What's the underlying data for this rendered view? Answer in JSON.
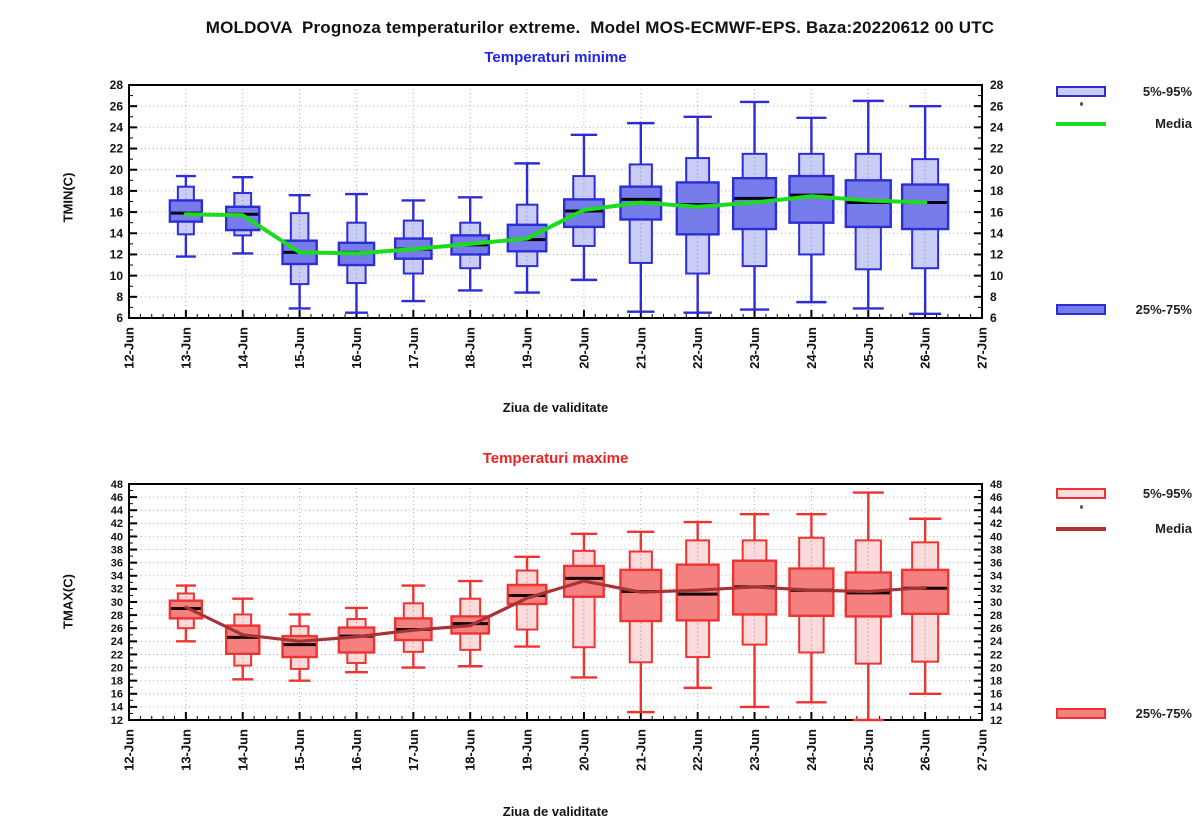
{
  "page": {
    "title": "MOLDOVA  Prognoza temperaturilor extreme.  Model MOS-ECMWF-EPS. Baza:20220612 00 UTC",
    "background": "#ffffff"
  },
  "chart_data": [
    {
      "type": "boxplot",
      "title": "Temperaturi minime",
      "title_color": "#2222ee",
      "ylabel": "TMIN(C)",
      "xlabel": "Ziua de validitate",
      "ylim": [
        6,
        28
      ],
      "ytick_step": 2,
      "grid": true,
      "legend_position": "right-outside",
      "legend": {
        "p5_95": "5%-95%",
        "media": "Media",
        "p25_75": "25%-75%"
      },
      "colors": {
        "border": "#2d2dd6",
        "box_dark": "#767ce9",
        "box_light": "#c9ccf5",
        "media_line": "#1ddb1d",
        "median": "#050514",
        "grid": "#b0b0b0"
      },
      "categories": [
        "12-Jun",
        "13-Jun",
        "14-Jun",
        "15-Jun",
        "16-Jun",
        "17-Jun",
        "18-Jun",
        "19-Jun",
        "20-Jun",
        "21-Jun",
        "22-Jun",
        "23-Jun",
        "24-Jun",
        "25-Jun",
        "26-Jun",
        "27-Jun"
      ],
      "boxes": [
        {
          "date": "13-Jun",
          "whisker_low": 11.8,
          "p5": 13.9,
          "p25": 15.1,
          "median": 15.9,
          "p75": 17.1,
          "p95": 18.4,
          "whisker_high": 19.4,
          "media": 15.8
        },
        {
          "date": "14-Jun",
          "whisker_low": 12.1,
          "p5": 13.8,
          "p25": 14.3,
          "median": 15.8,
          "p75": 16.5,
          "p95": 17.8,
          "whisker_high": 19.3,
          "media": 15.7
        },
        {
          "date": "15-Jun",
          "whisker_low": 6.9,
          "p5": 9.2,
          "p25": 11.1,
          "median": 12.2,
          "p75": 13.3,
          "p95": 15.9,
          "whisker_high": 17.6,
          "media": 12.2
        },
        {
          "date": "16-Jun",
          "whisker_low": 6.5,
          "p5": 9.3,
          "p25": 11.0,
          "median": 12.2,
          "p75": 13.1,
          "p95": 15.0,
          "whisker_high": 17.7,
          "media": 12.1
        },
        {
          "date": "17-Jun",
          "whisker_low": 7.6,
          "p5": 10.2,
          "p25": 11.6,
          "median": 12.5,
          "p75": 13.5,
          "p95": 15.2,
          "whisker_high": 17.1,
          "media": 12.5
        },
        {
          "date": "18-Jun",
          "whisker_low": 8.6,
          "p5": 10.7,
          "p25": 12.0,
          "median": 12.9,
          "p75": 13.8,
          "p95": 15.0,
          "whisker_high": 17.4,
          "media": 13.0
        },
        {
          "date": "19-Jun",
          "whisker_low": 8.4,
          "p5": 10.9,
          "p25": 12.3,
          "median": 13.4,
          "p75": 14.8,
          "p95": 16.7,
          "whisker_high": 20.6,
          "media": 13.5
        },
        {
          "date": "20-Jun",
          "whisker_low": 9.6,
          "p5": 12.8,
          "p25": 14.6,
          "median": 16.1,
          "p75": 17.2,
          "p95": 19.4,
          "whisker_high": 23.3,
          "media": 16.2
        },
        {
          "date": "21-Jun",
          "whisker_low": 6.6,
          "p5": 11.2,
          "p25": 15.3,
          "median": 17.2,
          "p75": 18.4,
          "p95": 20.5,
          "whisker_high": 24.4,
          "media": 16.9
        },
        {
          "date": "22-Jun",
          "whisker_low": 6.5,
          "p5": 10.2,
          "p25": 13.9,
          "median": 16.7,
          "p75": 18.8,
          "p95": 21.1,
          "whisker_high": 25.0,
          "media": 16.5
        },
        {
          "date": "23-Jun",
          "whisker_low": 6.8,
          "p5": 10.9,
          "p25": 14.4,
          "median": 17.3,
          "p75": 19.2,
          "p95": 21.5,
          "whisker_high": 26.4,
          "media": 16.9
        },
        {
          "date": "24-Jun",
          "whisker_low": 7.5,
          "p5": 12.0,
          "p25": 15.0,
          "median": 17.6,
          "p75": 19.4,
          "p95": 21.5,
          "whisker_high": 24.9,
          "media": 17.5
        },
        {
          "date": "25-Jun",
          "whisker_low": 6.9,
          "p5": 10.6,
          "p25": 14.6,
          "median": 16.9,
          "p75": 19.0,
          "p95": 21.5,
          "whisker_high": 26.5,
          "media": 17.1
        },
        {
          "date": "26-Jun",
          "whisker_low": 6.4,
          "p5": 10.7,
          "p25": 14.4,
          "median": 16.9,
          "p75": 18.6,
          "p95": 21.0,
          "whisker_high": 26.0,
          "media": 16.9
        }
      ]
    },
    {
      "type": "boxplot",
      "title": "Temperaturi maxime",
      "title_color": "#ee2222",
      "ylabel": "TMAX(C)",
      "xlabel": "Ziua de validitate",
      "ylim": [
        12,
        48
      ],
      "ytick_step": 2,
      "grid": true,
      "legend_position": "right-outside",
      "legend": {
        "p5_95": "5%-95%",
        "media": "Media",
        "p25_75": "25%-75%"
      },
      "colors": {
        "border": "#ee3333",
        "box_dark": "#f58080",
        "box_light": "#fadada",
        "media_line": "#a63434",
        "median": "#140505",
        "grid": "#b0b0b0"
      },
      "categories": [
        "12-Jun",
        "13-Jun",
        "14-Jun",
        "15-Jun",
        "16-Jun",
        "17-Jun",
        "18-Jun",
        "19-Jun",
        "20-Jun",
        "21-Jun",
        "22-Jun",
        "23-Jun",
        "24-Jun",
        "25-Jun",
        "26-Jun",
        "27-Jun"
      ],
      "boxes": [
        {
          "date": "13-Jun",
          "whisker_low": 24.0,
          "p5": 26.0,
          "p25": 27.5,
          "median": 29.0,
          "p75": 30.2,
          "p95": 31.3,
          "whisker_high": 32.5,
          "media": 29.2
        },
        {
          "date": "14-Jun",
          "whisker_low": 18.2,
          "p5": 20.3,
          "p25": 22.1,
          "median": 24.6,
          "p75": 26.4,
          "p95": 28.1,
          "whisker_high": 30.5,
          "media": 25.0
        },
        {
          "date": "15-Jun",
          "whisker_low": 18.0,
          "p5": 19.8,
          "p25": 21.6,
          "median": 23.5,
          "p75": 24.8,
          "p95": 26.3,
          "whisker_high": 28.1,
          "media": 24.0
        },
        {
          "date": "16-Jun",
          "whisker_low": 19.3,
          "p5": 20.7,
          "p25": 22.3,
          "median": 24.8,
          "p75": 26.1,
          "p95": 27.4,
          "whisker_high": 29.1,
          "media": 24.7
        },
        {
          "date": "17-Jun",
          "whisker_low": 20.0,
          "p5": 22.4,
          "p25": 24.2,
          "median": 25.8,
          "p75": 27.5,
          "p95": 29.8,
          "whisker_high": 32.5,
          "media": 25.7
        },
        {
          "date": "18-Jun",
          "whisker_low": 20.2,
          "p5": 22.7,
          "p25": 25.2,
          "median": 26.7,
          "p75": 27.8,
          "p95": 30.5,
          "whisker_high": 33.2,
          "media": 26.4
        },
        {
          "date": "19-Jun",
          "whisker_low": 23.2,
          "p5": 25.8,
          "p25": 29.7,
          "median": 31.0,
          "p75": 32.6,
          "p95": 34.8,
          "whisker_high": 36.9,
          "media": 30.6
        },
        {
          "date": "20-Jun",
          "whisker_low": 18.5,
          "p5": 23.1,
          "p25": 30.8,
          "median": 33.6,
          "p75": 35.5,
          "p95": 37.8,
          "whisker_high": 40.4,
          "media": 33.2
        },
        {
          "date": "21-Jun",
          "whisker_low": 13.2,
          "p5": 20.8,
          "p25": 27.1,
          "median": 31.6,
          "p75": 34.9,
          "p95": 37.7,
          "whisker_high": 40.7,
          "media": 31.5
        },
        {
          "date": "22-Jun",
          "whisker_low": 16.9,
          "p5": 21.6,
          "p25": 27.2,
          "median": 31.2,
          "p75": 35.7,
          "p95": 39.4,
          "whisker_high": 42.2,
          "media": 31.8
        },
        {
          "date": "23-Jun",
          "whisker_low": 14.0,
          "p5": 23.5,
          "p25": 28.1,
          "median": 32.3,
          "p75": 36.3,
          "p95": 39.4,
          "whisker_high": 43.4,
          "media": 32.3
        },
        {
          "date": "24-Jun",
          "whisker_low": 14.7,
          "p5": 22.3,
          "p25": 27.9,
          "median": 31.8,
          "p75": 35.1,
          "p95": 39.8,
          "whisker_high": 43.4,
          "media": 31.8
        },
        {
          "date": "25-Jun",
          "whisker_low": 12.0,
          "p5": 20.6,
          "p25": 27.8,
          "median": 31.4,
          "p75": 34.5,
          "p95": 39.4,
          "whisker_high": 46.7,
          "media": 31.6
        },
        {
          "date": "26-Jun",
          "whisker_low": 16.0,
          "p5": 20.9,
          "p25": 28.2,
          "median": 32.1,
          "p75": 34.9,
          "p95": 39.1,
          "whisker_high": 42.7,
          "media": 32.2
        }
      ]
    }
  ]
}
